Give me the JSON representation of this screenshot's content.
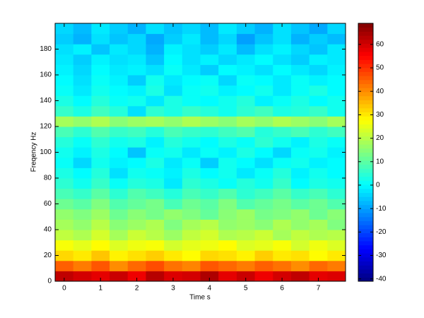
{
  "chart_data": {
    "type": "heatmap",
    "colormap": "jet",
    "xlabel": "Time s",
    "ylabel": "Freqency Hz",
    "xlim": [
      -0.25,
      7.75
    ],
    "ylim": [
      0,
      200
    ],
    "xticks": [
      0,
      1,
      2,
      3,
      4,
      5,
      6,
      7
    ],
    "yticks": [
      0,
      20,
      40,
      60,
      80,
      100,
      120,
      140,
      160,
      180
    ],
    "clim": [
      -41,
      69
    ],
    "cticks": [
      -40,
      -30,
      -20,
      -10,
      0,
      10,
      20,
      30,
      40,
      50,
      60
    ],
    "x": [
      0,
      0.5,
      1,
      1.5,
      2,
      2.5,
      3,
      3.5,
      4,
      4.5,
      5,
      5.5,
      6,
      6.5,
      7,
      7.5
    ],
    "y": [
      4,
      12,
      20,
      28,
      36,
      44,
      52,
      60,
      68,
      76,
      84,
      92,
      100,
      108,
      116,
      124,
      132,
      140,
      148,
      156,
      164,
      172,
      180,
      188,
      196
    ],
    "values": [
      [
        62,
        60,
        58,
        61,
        57,
        63,
        59,
        60,
        64,
        58,
        61,
        57,
        60,
        62,
        58,
        59
      ],
      [
        45,
        42,
        46,
        40,
        44,
        47,
        43,
        41,
        46,
        44,
        42,
        45,
        43,
        40,
        44,
        42
      ],
      [
        32,
        30,
        34,
        29,
        31,
        33,
        30,
        28,
        32,
        31,
        29,
        33,
        30,
        31,
        28,
        30
      ],
      [
        27,
        25,
        28,
        24,
        26,
        27,
        23,
        25,
        26,
        28,
        24,
        25,
        27,
        23,
        26,
        24
      ],
      [
        21,
        19,
        23,
        18,
        22,
        20,
        17,
        21,
        23,
        19,
        20,
        22,
        18,
        21,
        19,
        20
      ],
      [
        18,
        16,
        20,
        15,
        17,
        19,
        14,
        18,
        20,
        16,
        17,
        15,
        19,
        16,
        18,
        14
      ],
      [
        16,
        14,
        17,
        12,
        15,
        13,
        16,
        14,
        11,
        15,
        17,
        13,
        14,
        16,
        12,
        15
      ],
      [
        12,
        10,
        14,
        9,
        11,
        13,
        8,
        12,
        10,
        14,
        9,
        11,
        13,
        10,
        12,
        9
      ],
      [
        8,
        6,
        10,
        5,
        9,
        7,
        4,
        8,
        6,
        9,
        5,
        7,
        10,
        6,
        8,
        5
      ],
      [
        5,
        2,
        6,
        1,
        4,
        3,
        -2,
        5,
        3,
        1,
        4,
        2,
        6,
        0,
        3,
        2
      ],
      [
        3,
        0,
        4,
        -3,
        2,
        1,
        -1,
        3,
        0,
        2,
        -2,
        1,
        4,
        -1,
        2,
        0
      ],
      [
        1,
        -4,
        2,
        -1,
        0,
        3,
        -2,
        1,
        -5,
        2,
        0,
        -3,
        1,
        2,
        -1,
        0
      ],
      [
        2,
        -1,
        3,
        0,
        -6,
        1,
        2,
        -2,
        1,
        -1,
        3,
        0,
        -4,
        1,
        2,
        -1
      ],
      [
        4,
        1,
        5,
        2,
        3,
        -1,
        4,
        2,
        0,
        3,
        1,
        5,
        2,
        -1,
        3,
        1
      ],
      [
        8,
        5,
        9,
        6,
        7,
        4,
        8,
        6,
        5,
        7,
        9,
        4,
        6,
        8,
        5,
        7
      ],
      [
        18,
        16,
        19,
        15,
        17,
        18,
        16,
        19,
        17,
        15,
        18,
        16,
        19,
        17,
        15,
        18
      ],
      [
        6,
        3,
        7,
        4,
        -3,
        5,
        3,
        6,
        4,
        2,
        5,
        7,
        3,
        4,
        6,
        2
      ],
      [
        3,
        0,
        4,
        1,
        2,
        -2,
        3,
        1,
        0,
        2,
        4,
        -1,
        1,
        3,
        0,
        2
      ],
      [
        1,
        -2,
        2,
        0,
        -1,
        3,
        -3,
        1,
        2,
        -1,
        0,
        2,
        -2,
        1,
        3,
        0
      ],
      [
        0,
        -3,
        1,
        -1,
        -5,
        2,
        -2,
        0,
        1,
        -4,
        1,
        0,
        -2,
        1,
        -1,
        0
      ],
      [
        -1,
        -4,
        0,
        -2,
        -1,
        -3,
        1,
        -2,
        -5,
        0,
        -1,
        -3,
        0,
        -2,
        -4,
        -1
      ],
      [
        -2,
        -5,
        -1,
        -3,
        -2,
        -6,
        0,
        -3,
        -1,
        -4,
        -2,
        0,
        -3,
        -5,
        -1,
        -2
      ],
      [
        -3,
        -1,
        -6,
        -2,
        -4,
        -8,
        -1,
        -3,
        -5,
        -2,
        -7,
        -3,
        -1,
        -4,
        -6,
        -2
      ],
      [
        -5,
        -8,
        -3,
        -6,
        -4,
        -9,
        -5,
        -2,
        -7,
        -4,
        -10,
        -6,
        -3,
        -8,
        -5,
        -7
      ],
      [
        -4,
        -7,
        -2,
        -5,
        -8,
        -3,
        -6,
        -4,
        -7,
        -2,
        -5,
        -8,
        -3,
        -6,
        -9,
        -4
      ]
    ]
  }
}
